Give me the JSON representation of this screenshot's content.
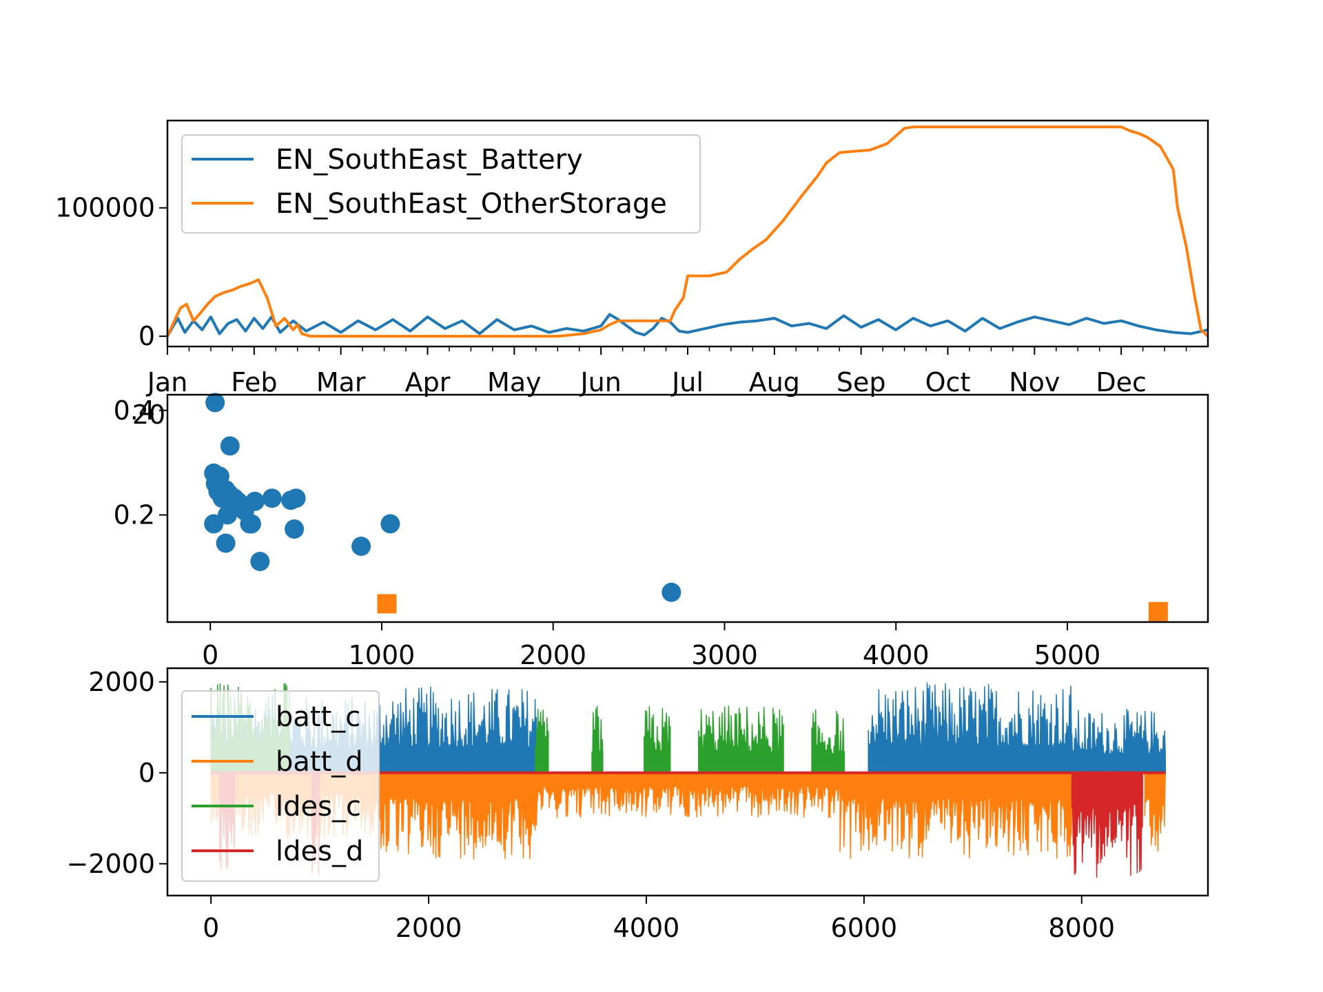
{
  "chart_data": [
    {
      "type": "line",
      "x_kind": "month-of-year",
      "x_tick_labels": [
        "Jan",
        "Feb",
        "Mar",
        "Apr",
        "May",
        "Jun",
        "Jul",
        "Aug",
        "Sep",
        "Oct",
        "Nov",
        "Dec"
      ],
      "x_offset_label": "20",
      "xlim": [
        0,
        12
      ],
      "ylim": [
        -8000,
        168000
      ],
      "y_ticks": [
        0,
        100000
      ],
      "y_tick_labels": [
        "0",
        "100000"
      ],
      "legend_placement": "upper-left",
      "series": [
        {
          "name": "EN_SouthEast_Battery",
          "color": "#1f77b4",
          "x": [
            0,
            0.05,
            0.12,
            0.2,
            0.3,
            0.4,
            0.5,
            0.6,
            0.7,
            0.8,
            0.9,
            1.0,
            1.1,
            1.2,
            1.3,
            1.45,
            1.6,
            1.8,
            2.0,
            2.2,
            2.4,
            2.6,
            2.8,
            3.0,
            3.2,
            3.4,
            3.6,
            3.8,
            4.0,
            4.2,
            4.4,
            4.6,
            4.8,
            5.0,
            5.1,
            5.2,
            5.3,
            5.4,
            5.5,
            5.6,
            5.7,
            5.8,
            5.9,
            6.0,
            6.2,
            6.4,
            6.6,
            6.8,
            7.0,
            7.2,
            7.4,
            7.6,
            7.8,
            8.0,
            8.2,
            8.4,
            8.6,
            8.8,
            9.0,
            9.2,
            9.4,
            9.6,
            9.8,
            10.0,
            10.2,
            10.4,
            10.6,
            10.8,
            11.0,
            11.2,
            11.4,
            11.6,
            11.8,
            12.0
          ],
          "y": [
            0,
            6000,
            14000,
            3000,
            12000,
            5000,
            15000,
            2000,
            10000,
            13000,
            4000,
            14000,
            6000,
            15000,
            3000,
            12000,
            4000,
            11000,
            3000,
            12000,
            5000,
            13000,
            4000,
            15000,
            6000,
            12000,
            2000,
            13000,
            5000,
            8000,
            3000,
            6000,
            4000,
            8000,
            17000,
            13000,
            8000,
            3000,
            1000,
            6000,
            14000,
            11000,
            4000,
            3000,
            6000,
            9000,
            11000,
            12000,
            14000,
            8000,
            10000,
            6000,
            16000,
            7000,
            13000,
            5000,
            14000,
            8000,
            12000,
            4000,
            14000,
            6000,
            11000,
            15000,
            12000,
            9000,
            14000,
            10000,
            12000,
            8000,
            5000,
            3000,
            2000,
            5000
          ]
        },
        {
          "name": "EN_SouthEast_OtherStorage",
          "color": "#ff7f0e",
          "x": [
            0,
            0.08,
            0.15,
            0.22,
            0.3,
            0.38,
            0.45,
            0.55,
            0.65,
            0.75,
            0.85,
            0.95,
            1.05,
            1.15,
            1.25,
            1.35,
            1.45,
            1.5,
            1.55,
            1.65,
            2.0,
            3.0,
            4.0,
            4.5,
            4.8,
            5.0,
            5.1,
            5.2,
            5.4,
            5.6,
            5.8,
            5.85,
            5.95,
            6.0,
            6.25,
            6.45,
            6.6,
            6.75,
            6.9,
            7.1,
            7.3,
            7.5,
            7.6,
            7.75,
            7.9,
            8.1,
            8.3,
            8.5,
            8.6,
            8.7,
            8.8,
            9.0,
            9.5,
            10.0,
            10.5,
            11.0,
            11.1,
            11.2,
            11.3,
            11.45,
            11.6,
            11.65,
            11.75,
            11.85,
            11.92,
            12.0
          ],
          "y": [
            0,
            12000,
            22000,
            25000,
            12000,
            18000,
            24000,
            31000,
            34000,
            36000,
            39000,
            41000,
            44000,
            30000,
            8000,
            14000,
            5000,
            9000,
            2000,
            0,
            0,
            0,
            0,
            0,
            2000,
            5000,
            9000,
            12000,
            12000,
            12000,
            12000,
            20000,
            30000,
            47000,
            47000,
            50000,
            60000,
            68000,
            75000,
            90000,
            108000,
            125000,
            135000,
            143000,
            144000,
            145000,
            150000,
            162000,
            163000,
            163000,
            163000,
            163000,
            163000,
            163000,
            163000,
            163000,
            160000,
            158000,
            155000,
            148000,
            130000,
            100000,
            70000,
            30000,
            5000,
            0
          ]
        }
      ]
    },
    {
      "type": "scatter",
      "xlim": [
        -250,
        5820
      ],
      "ylim": [
        -0.005,
        0.43
      ],
      "x_ticks": [
        0,
        1000,
        2000,
        3000,
        4000,
        5000
      ],
      "x_tick_labels": [
        "0",
        "1000",
        "2000",
        "3000",
        "4000",
        "5000"
      ],
      "y_ticks": [
        0.2,
        0.4
      ],
      "y_tick_labels": [
        "0.2",
        "0.4"
      ],
      "series": [
        {
          "marker": "circle",
          "color": "#1f77b4",
          "x": [
            28,
            115,
            20,
            55,
            30,
            45,
            90,
            70,
            110,
            140,
            130,
            160,
            180,
            200,
            100,
            20,
            230,
            260,
            360,
            470,
            500,
            240,
            290,
            490,
            90,
            880,
            1050,
            2690
          ],
          "y": [
            0.415,
            0.332,
            0.28,
            0.274,
            0.26,
            0.245,
            0.248,
            0.232,
            0.24,
            0.232,
            0.215,
            0.226,
            0.22,
            0.208,
            0.2,
            0.183,
            0.183,
            0.226,
            0.232,
            0.228,
            0.232,
            0.183,
            0.111,
            0.173,
            0.146,
            0.14,
            0.183,
            0.052
          ]
        },
        {
          "marker": "square",
          "color": "#ff7f0e",
          "x": [
            1030,
            5530
          ],
          "y": [
            0.03,
            0.015
          ]
        }
      ]
    },
    {
      "type": "area",
      "xlim": [
        -400,
        9160
      ],
      "ylim": [
        -2700,
        2300
      ],
      "x_ticks": [
        0,
        2000,
        4000,
        6000,
        8000
      ],
      "x_tick_labels": [
        "0",
        "2000",
        "4000",
        "6000",
        "8000"
      ],
      "y_ticks": [
        -2000,
        0,
        2000
      ],
      "y_tick_labels": [
        "−2000",
        "0",
        "2000"
      ],
      "legend_placement": "center-left",
      "series": [
        {
          "name": "batt_c",
          "color": "#1f77b4",
          "segments": [
            [
              0,
              1550,
              1700
            ],
            [
              1550,
              2990,
              1900
            ],
            [
              6040,
              7910,
              2000
            ],
            [
              7910,
              8770,
              1400
            ]
          ]
        },
        {
          "name": "batt_d",
          "color": "#ff7f0e",
          "segments": [
            [
              0,
              1550,
              -1500
            ],
            [
              1550,
              3000,
              -1900
            ],
            [
              3000,
              5780,
              -1000
            ],
            [
              5780,
              7910,
              -1900
            ],
            [
              8580,
              8770,
              -1800
            ]
          ]
        },
        {
          "name": "ldes_c",
          "color": "#2ca02c",
          "segments": [
            [
              0,
              720,
              2000
            ],
            [
              2980,
              3100,
              1400
            ],
            [
              3500,
              3600,
              1500
            ],
            [
              3980,
              4220,
              1500
            ],
            [
              4480,
              5260,
              1500
            ],
            [
              5520,
              5820,
              1400
            ]
          ]
        },
        {
          "name": "ldes_d",
          "color": "#d62728",
          "segments": [
            [
              80,
              220,
              -2200
            ],
            [
              930,
              1000,
              -2300
            ],
            [
              7910,
              8560,
              -2300
            ]
          ]
        }
      ]
    }
  ]
}
